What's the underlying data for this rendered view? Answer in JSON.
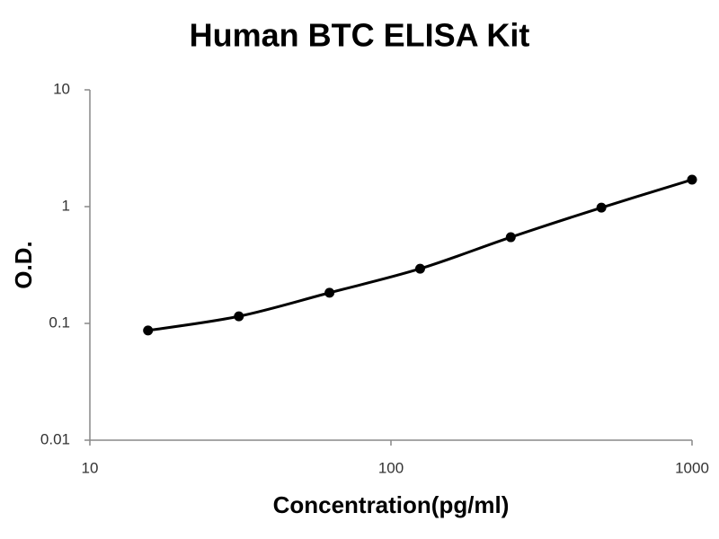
{
  "chart_data": {
    "type": "line",
    "title": "Human BTC ELISA Kit",
    "x_label": "Concentration(pg/ml)",
    "y_label": "O.D.",
    "x": [
      15.6,
      31.25,
      62.5,
      125,
      250,
      500,
      1000
    ],
    "series": [
      {
        "name": null,
        "color": "#000000",
        "values": [
          0.087,
          0.115,
          0.183,
          0.294,
          0.547,
          0.98,
          1.7
        ]
      }
    ],
    "xscale": "log",
    "yscale": "log",
    "xlim": [
      10,
      1000
    ],
    "ylim": [
      0.01,
      10
    ],
    "xticks": [
      10,
      100,
      1000
    ],
    "yticks": [
      0.01,
      0.1,
      1,
      10
    ],
    "grid": false
  }
}
